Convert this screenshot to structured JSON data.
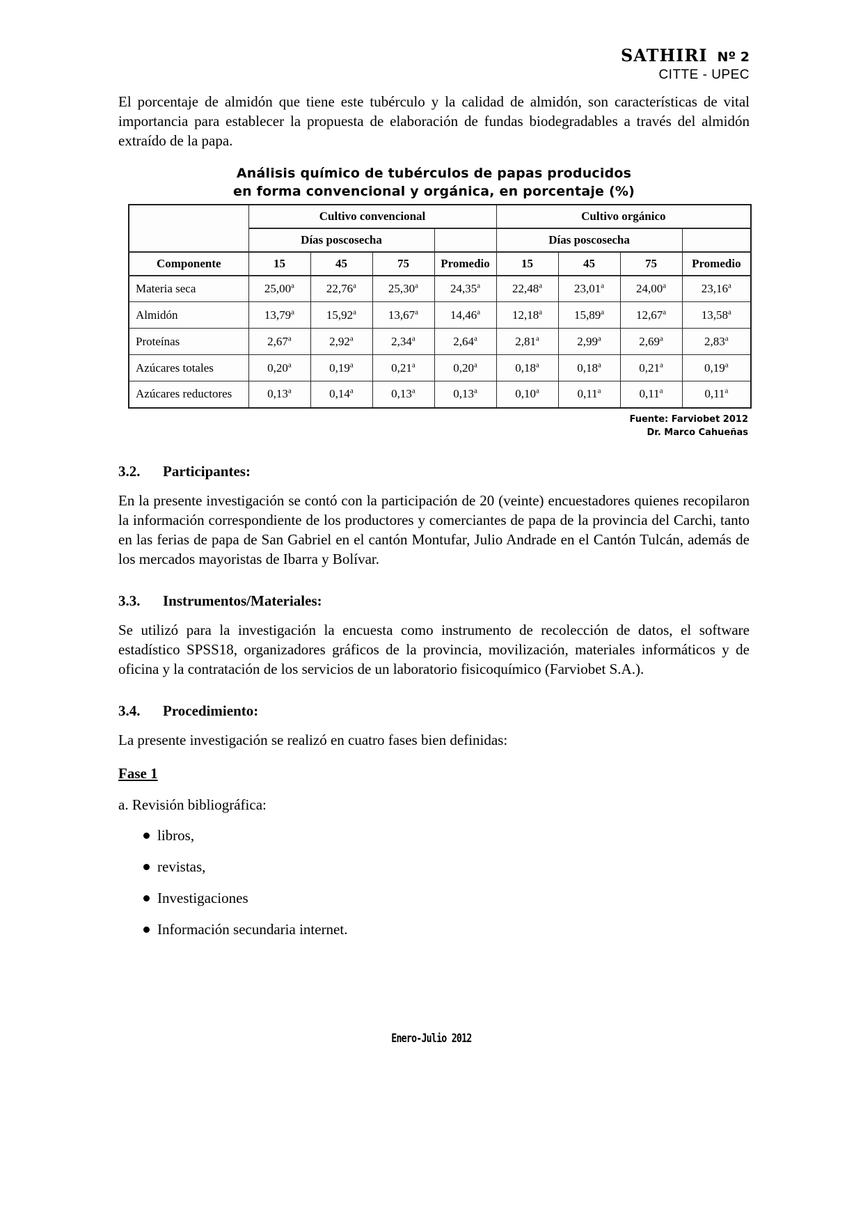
{
  "header": {
    "journal": "SATHIRI",
    "issue": "Nº 2",
    "org": "CITTE - UPEC"
  },
  "intro": "El porcentaje de almidón que tiene este tubérculo y la calidad de almidón, son características de vital importancia para establecer la propuesta de elaboración de fundas biodegradables a través del almidón extraído de la papa.",
  "table": {
    "title_line1": "Análisis químico de tubérculos de papas producidos",
    "title_line2": "en forma convencional y orgánica, en porcentaje (%)",
    "group1": "Cultivo convencional",
    "group2": "Cultivo orgánico",
    "subgroup": "Días poscosecha",
    "component_header": "Componente",
    "col_headers": [
      "15",
      "45",
      "75",
      "Promedio",
      "15",
      "45",
      "75",
      "Promedio"
    ],
    "superscript": "a",
    "rows": [
      {
        "label": "Materia seca",
        "values": [
          "25,00",
          "22,76",
          "25,30",
          "24,35",
          "22,48",
          "23,01",
          "24,00",
          "23,16"
        ]
      },
      {
        "label": "Almidón",
        "values": [
          "13,79",
          "15,92",
          "13,67",
          "14,46",
          "12,18",
          "15,89",
          "12,67",
          "13,58"
        ]
      },
      {
        "label": "Proteínas",
        "values": [
          "2,67",
          "2,92",
          "2,34",
          "2,64",
          "2,81",
          "2,99",
          "2,69",
          "2,83"
        ]
      },
      {
        "label": "Azúcares totales",
        "values": [
          "0,20",
          "0,19",
          "0,21",
          "0,20",
          "0,18",
          "0,18",
          "0,21",
          "0,19"
        ]
      },
      {
        "label": "Azúcares reductores",
        "values": [
          "0,13",
          "0,14",
          "0,13",
          "0,13",
          "0,10",
          "0,11",
          "0,11",
          "0,11"
        ]
      }
    ],
    "source_line1": "Fuente: Farviobet  2012",
    "source_line2": "Dr. Marco Cahueñas"
  },
  "sections": [
    {
      "number": "3.2.",
      "title": "Participantes:",
      "body": "En la presente investigación se contó con la participación de 20 (veinte) encuestadores quienes recopilaron la información correspondiente de los productores y comerciantes de papa de la provincia del Carchi, tanto en las ferias de papa de San Gabriel en el cantón Montufar, Julio Andrade en el Cantón Tulcán, además de los mercados mayoristas de Ibarra y Bolívar."
    },
    {
      "number": "3.3.",
      "title": "Instrumentos/Materiales:",
      "body": "Se utilizó para la investigación la encuesta como instrumento de recolección de datos, el software estadístico SPSS18, organizadores gráficos de la provincia, movilización, materiales informáticos y de oficina y la contratación de los servicios de un laboratorio fisicoquímico (Farviobet S.A.)."
    },
    {
      "number": "3.4.",
      "title": "Procedimiento:",
      "body": "La presente investigación se realizó en cuatro fases bien definidas:"
    }
  ],
  "fase": {
    "title": "Fase 1",
    "item_a": "a. Revisión bibliográfica:",
    "bullets": [
      "libros,",
      "revistas,",
      "Investigaciones",
      "Información secundaria internet."
    ]
  },
  "footer": "Enero-Julio 2012"
}
